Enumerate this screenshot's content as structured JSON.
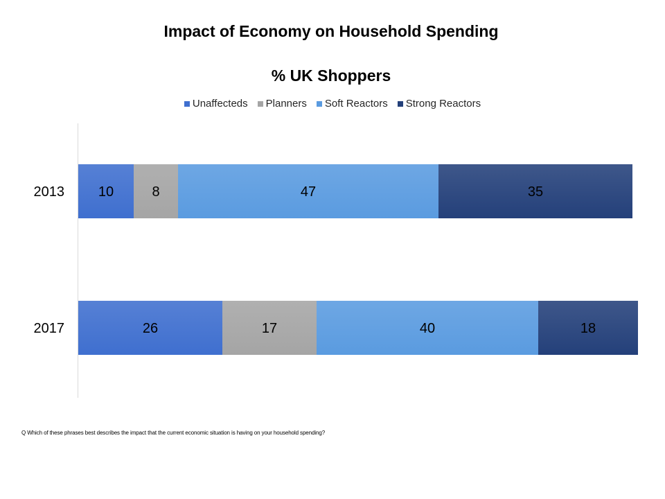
{
  "chart_data": {
    "type": "bar",
    "orientation": "horizontal",
    "stacked": true,
    "title": "Impact of Economy on Household Spending",
    "subtitle": "% UK Shoppers",
    "categories": [
      "2013",
      "2017"
    ],
    "series": [
      {
        "name": "Unaffecteds",
        "values": [
          10,
          26
        ],
        "color": "#3f6fcf"
      },
      {
        "name": "Planners",
        "values": [
          8,
          17
        ],
        "color": "#a5a5a5"
      },
      {
        "name": "Soft Reactors",
        "values": [
          47,
          40
        ],
        "color": "#5a9be0"
      },
      {
        "name": "Strong Reactors",
        "values": [
          35,
          18
        ],
        "color": "#24407a"
      }
    ],
    "xlim": [
      0,
      100
    ],
    "legend_position": "top",
    "grid": false
  },
  "footnote": "Q Which of these phrases best describes the impact that the current economic situation is having on your household spending?"
}
